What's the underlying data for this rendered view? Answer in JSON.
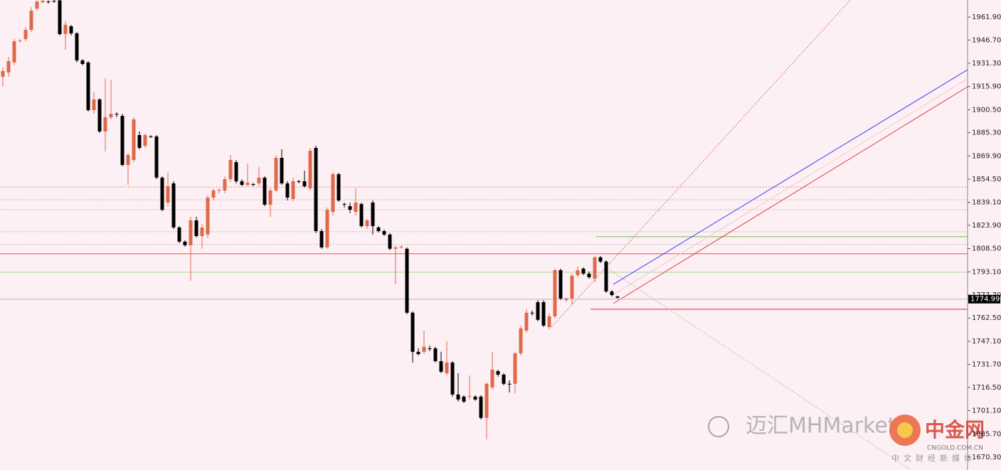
{
  "chart_data": {
    "type": "candlestick",
    "xlim": [
      -0.5,
      169.5
    ],
    "ylim": [
      1661.8,
      1973.2
    ],
    "yticks": [
      {
        "value": 1961.9,
        "label": "1961.90"
      },
      {
        "value": 1946.7,
        "label": "1946.70"
      },
      {
        "value": 1931.3,
        "label": "1931.30"
      },
      {
        "value": 1915.9,
        "label": "1915.90"
      },
      {
        "value": 1900.5,
        "label": "1900.50"
      },
      {
        "value": 1885.3,
        "label": "1885.30"
      },
      {
        "value": 1869.9,
        "label": "1869.90"
      },
      {
        "value": 1854.5,
        "label": "1854.50"
      },
      {
        "value": 1839.1,
        "label": "1839.10"
      },
      {
        "value": 1823.9,
        "label": "1823.90"
      },
      {
        "value": 1808.5,
        "label": "1808.50"
      },
      {
        "value": 1793.1,
        "label": "1793.10"
      },
      {
        "value": 1777.7,
        "label": "1777.70"
      },
      {
        "value": 1762.5,
        "label": "1762.50"
      },
      {
        "value": 1747.1,
        "label": "1747.10"
      },
      {
        "value": 1731.7,
        "label": "1731.70"
      },
      {
        "value": 1716.5,
        "label": "1716.50"
      },
      {
        "value": 1701.1,
        "label": "1701.10"
      },
      {
        "value": 1685.7,
        "label": "1685.70"
      },
      {
        "value": 1670.3,
        "label": "1670.30"
      }
    ],
    "up_color": "#e0694a",
    "down_color": "#000000",
    "candles": {
      "open": [
        1922.3,
        1925.2,
        1931.8,
        1945.9,
        1947.3,
        1953.4,
        1967.5,
        1971.8,
        1972.2,
        1972.7,
        1973.0,
        1950.6,
        1955.8,
        1951.1,
        1933.2,
        1931.8,
        1900.2,
        1907.3,
        1886.1,
        1895.5,
        1897.8,
        1896.4,
        1863.9,
        1867.2,
        1883.7,
        1876.6,
        1882.8,
        1882.8,
        1855.5,
        1839.0,
        1851.7,
        1822.5,
        1813.1,
        1810.7,
        1827.2,
        1816.8,
        1817.8,
        1842.3,
        1847.0,
        1847.0,
        1854.5,
        1865.8,
        1853.1,
        1850.7,
        1851.2,
        1851.7,
        1855.5,
        1837.6,
        1847.0,
        1868.6,
        1851.7,
        1841.3,
        1853.1,
        1853.1,
        1848.4,
        1875.2,
        1820.1,
        1809.3,
        1832.8,
        1857.8,
        1838.0,
        1836.6,
        1832.8,
        1838.0,
        1823.4,
        1839.0,
        1822.5,
        1820.1,
        1817.8,
        1808.4,
        1809.3,
        1808.4,
        1766.0,
        1740.1,
        1740.1,
        1742.4,
        1742.4,
        1733.9,
        1725.9,
        1733.0,
        1711.8,
        1710.4,
        1710.4,
        1710.4,
        1710.4,
        1696.3,
        1716.5,
        1727.3,
        1725.0,
        1718.9,
        1718.9,
        1739.1,
        1754.2,
        1766.0,
        1773.0,
        1773.0,
        1756.5,
        1763.6,
        1794.2,
        1774.4,
        1775.4,
        1790.9,
        1795.2,
        1791.9,
        1788.6,
        1802.7,
        1799.9,
        1780.1,
        1776.8
      ],
      "high": [
        1928.5,
        1935.5,
        1947.3,
        1947.3,
        1955.3,
        1968.5,
        1973.0,
        1973.0,
        1973.0,
        1973.0,
        1973.1,
        1959.1,
        1956.7,
        1952.0,
        1934.1,
        1932.7,
        1912.0,
        1908.2,
        1921.4,
        1920.4,
        1898.8,
        1897.8,
        1871.9,
        1895.5,
        1886.1,
        1884.7,
        1883.7,
        1883.7,
        1856.4,
        1858.7,
        1853.1,
        1823.4,
        1814.0,
        1829.6,
        1829.6,
        1824.8,
        1843.7,
        1848.4,
        1848.4,
        1856.4,
        1870.5,
        1867.2,
        1854.5,
        1864.9,
        1852.2,
        1862.5,
        1856.4,
        1848.4,
        1870.5,
        1874.3,
        1853.1,
        1855.5,
        1854.0,
        1860.2,
        1875.2,
        1876.6,
        1821.5,
        1835.7,
        1859.2,
        1858.7,
        1839.0,
        1839.0,
        1848.4,
        1839.0,
        1828.1,
        1840.4,
        1823.4,
        1821.1,
        1818.7,
        1810.2,
        1810.7,
        1809.3,
        1766.9,
        1742.4,
        1754.2,
        1744.3,
        1743.4,
        1740.1,
        1747.1,
        1733.9,
        1725.9,
        1711.3,
        1724.5,
        1711.3,
        1711.3,
        1719.8,
        1740.1,
        1728.3,
        1725.9,
        1721.2,
        1740.1,
        1757.5,
        1768.3,
        1767.4,
        1774.4,
        1774.4,
        1765.5,
        1795.2,
        1795.2,
        1776.3,
        1791.9,
        1796.6,
        1796.1,
        1793.3,
        1803.6,
        1803.6,
        1800.8,
        1781.0,
        1777.3
      ],
      "low": [
        1915.7,
        1922.3,
        1929.9,
        1944.9,
        1945.9,
        1952.0,
        1966.1,
        1970.8,
        1970.8,
        1971.3,
        1949.7,
        1940.2,
        1949.7,
        1931.8,
        1929.9,
        1899.3,
        1897.8,
        1885.1,
        1872.9,
        1894.1,
        1895.5,
        1863.0,
        1850.7,
        1865.8,
        1874.3,
        1875.2,
        1881.8,
        1854.5,
        1833.3,
        1836.6,
        1821.5,
        1812.1,
        1809.8,
        1787.2,
        1815.9,
        1808.4,
        1815.4,
        1840.4,
        1845.1,
        1845.1,
        1852.6,
        1851.7,
        1849.8,
        1849.8,
        1849.8,
        1849.8,
        1836.6,
        1829.6,
        1846.0,
        1850.7,
        1840.4,
        1839.9,
        1851.7,
        1848.9,
        1847.0,
        1818.7,
        1808.4,
        1808.4,
        1830.4,
        1839.4,
        1835.7,
        1831.9,
        1830.4,
        1822.5,
        1821.5,
        1817.8,
        1819.2,
        1816.8,
        1807.4,
        1784.8,
        1808.4,
        1765.0,
        1733.0,
        1737.7,
        1738.6,
        1740.5,
        1733.0,
        1725.9,
        1724.5,
        1710.4,
        1707.1,
        1706.1,
        1708.5,
        1707.6,
        1695.3,
        1682.1,
        1715.1,
        1723.6,
        1717.9,
        1713.2,
        1712.7,
        1737.7,
        1752.8,
        1764.1,
        1760.3,
        1756.5,
        1755.1,
        1762.2,
        1774.4,
        1773.0,
        1771.6,
        1789.5,
        1790.9,
        1788.6,
        1786.2,
        1798.9,
        1779.1,
        1776.8,
        1775.4
      ],
      "close": [
        1926.1,
        1932.7,
        1945.9,
        1946.4,
        1953.4,
        1966.1,
        1972.2,
        1972.7,
        1971.8,
        1972.2,
        1950.6,
        1956.7,
        1951.1,
        1933.2,
        1930.8,
        1900.2,
        1907.3,
        1886.1,
        1895.5,
        1897.8,
        1897.4,
        1863.9,
        1870.5,
        1894.1,
        1875.2,
        1883.7,
        1882.3,
        1855.5,
        1834.2,
        1849.8,
        1822.5,
        1813.1,
        1810.7,
        1827.2,
        1816.8,
        1822.5,
        1842.3,
        1847.0,
        1847.4,
        1854.5,
        1867.2,
        1853.1,
        1850.7,
        1852.2,
        1850.7,
        1855.5,
        1837.6,
        1847.0,
        1868.6,
        1851.7,
        1842.3,
        1853.1,
        1852.6,
        1849.8,
        1873.3,
        1820.1,
        1809.3,
        1834.2,
        1857.8,
        1840.4,
        1837.6,
        1834.2,
        1839.0,
        1823.4,
        1827.2,
        1823.4,
        1820.1,
        1817.8,
        1808.4,
        1809.3,
        1809.8,
        1766.0,
        1740.1,
        1738.6,
        1743.4,
        1741.9,
        1733.9,
        1726.9,
        1733.0,
        1711.8,
        1708.5,
        1707.1,
        1710.8,
        1708.5,
        1696.3,
        1718.9,
        1728.3,
        1725.0,
        1718.9,
        1718.4,
        1739.1,
        1755.6,
        1766.0,
        1765.5,
        1761.3,
        1757.5,
        1763.6,
        1794.2,
        1775.4,
        1775.4,
        1790.5,
        1794.2,
        1791.9,
        1789.5,
        1802.7,
        1799.9,
        1780.1,
        1777.7,
        1775.9
      ]
    },
    "levels": [
      {
        "value": 1849.3,
        "color": "#e88a8a",
        "style": "dotted",
        "from": -0.5
      },
      {
        "value": 1840.8,
        "color": "#b8b8b8",
        "style": "dotted",
        "from": -0.5
      },
      {
        "value": 1834.3,
        "color": "#b8b8b8",
        "style": "dotted",
        "from": -0.5
      },
      {
        "value": 1819.7,
        "color": "#b8b8b8",
        "style": "dotted",
        "from": -0.5
      },
      {
        "value": 1811.2,
        "color": "#b8b8b8",
        "style": "dotted",
        "from": -0.5
      },
      {
        "value": 1805.1,
        "color": "#e05050",
        "style": "solid",
        "from": -0.5
      },
      {
        "value": 1792.8,
        "color": "#a8d890",
        "style": "solid",
        "from": -0.5
      },
      {
        "value": 1816.4,
        "color": "#6cc04a",
        "style": "solid",
        "from": 104.25
      },
      {
        "value": 1768.3,
        "color": "#d03030",
        "style": "solid",
        "from": 103.25
      }
    ],
    "trendlines": [
      {
        "x": [
          107.25,
          169.5
        ],
        "y": [
          1784.8,
          1927.0
        ],
        "color": "#3a3aff",
        "style": "solid"
      },
      {
        "x": [
          107.25,
          169.5
        ],
        "y": [
          1778.0,
          1921.0
        ],
        "color": "#f0c8d0",
        "style": "solid"
      },
      {
        "x": [
          107.25,
          169.5
        ],
        "y": [
          1772.1,
          1915.7
        ],
        "color": "#e04040",
        "style": "solid"
      },
      {
        "x": [
          96.4,
          148.9
        ],
        "y": [
          1756.5,
          1973.2
        ],
        "color": "#e07070",
        "style": "dotted"
      },
      {
        "x": [
          105.75,
          159.5
        ],
        "y": [
          1796.6,
          1661.8
        ],
        "color": "#c0b0b0",
        "style": "dotted"
      }
    ],
    "last_price": 1774.99,
    "watermark": {
      "account": "迈汇MHMarkets",
      "brand": "中金网",
      "site": "CNGOLD.COM.CN",
      "slogan": "中文财经新媒体"
    }
  }
}
